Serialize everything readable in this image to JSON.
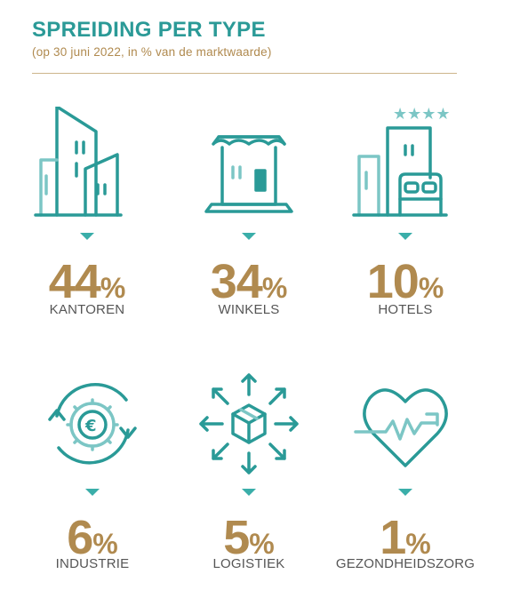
{
  "header": {
    "title": "SPREIDING PER TYPE",
    "subtitle": "(op 30 juni 2022, in % van de marktwaarde)"
  },
  "colors": {
    "teal": "#2a9a97",
    "teal_light": "#7cc6c5",
    "gold": "#b08a4f",
    "label_gray": "#555555"
  },
  "chart_data": {
    "type": "table",
    "title": "SPREIDING PER TYPE",
    "subtitle": "(op 30 juni 2022, in % van de marktwaarde)",
    "unit": "%",
    "categories": [
      "KANTOREN",
      "WINKELS",
      "HOTELS",
      "INDUSTRIE",
      "LOGISTIEK",
      "GEZONDHEIDSZORG"
    ],
    "values": [
      44,
      34,
      10,
      6,
      5,
      1
    ],
    "items": [
      {
        "label": "KANTOREN",
        "value": "44",
        "unit": "%",
        "icon": "office-buildings-icon"
      },
      {
        "label": "WINKELS",
        "value": "34",
        "unit": "%",
        "icon": "storefront-icon"
      },
      {
        "label": "HOTELS",
        "value": "10",
        "unit": "%",
        "icon": "hotel-bed-icon"
      },
      {
        "label": "INDUSTRIE",
        "value": "6",
        "unit": "%",
        "icon": "euro-gear-cycle-icon"
      },
      {
        "label": "LOGISTIEK",
        "value": "5",
        "unit": "%",
        "icon": "box-arrows-icon"
      },
      {
        "label": "GEZONDHEIDSZORG",
        "value": "1",
        "unit": "%",
        "icon": "heart-pulse-icon"
      }
    ]
  }
}
